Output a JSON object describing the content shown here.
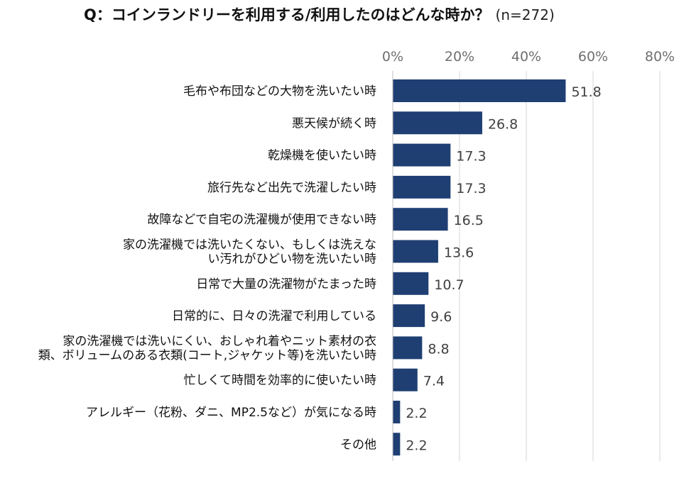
{
  "title": {
    "question": "Q：コインランドリーを利用する/利用したのはどんな時か？",
    "sample": "(n=272)"
  },
  "colors": {
    "bar": "#1f3f73",
    "grid": "#d4d4d4",
    "tick_text": "#6f6f6f",
    "value_text": "#404040"
  },
  "chart_data": {
    "type": "bar",
    "orientation": "horizontal",
    "xlim": [
      0,
      80
    ],
    "xticks": [
      0,
      20,
      40,
      60,
      80
    ],
    "xtick_labels": [
      "0%",
      "20%",
      "40%",
      "60%",
      "80%"
    ],
    "xaxis_position": "top",
    "grid": true,
    "categories": [
      [
        "毛布や布団などの大物を洗いたい時"
      ],
      [
        "悪天候が続く時"
      ],
      [
        "乾燥機を使いたい時"
      ],
      [
        "旅行先など出先で洗濯したい時"
      ],
      [
        "故障などで自宅の洗濯機が使用できない時"
      ],
      [
        "家の洗濯機では洗いたくない、もしくは洗えな",
        "い汚れがひどい物を洗いたい時"
      ],
      [
        "日常で大量の洗濯物がたまった時"
      ],
      [
        "日常的に、日々の洗濯で利用している"
      ],
      [
        "家の洗濯機では洗いにくい、おしゃれ着やニット素材の衣",
        "類、ボリュームのある衣類(コート,ジャケット等)を洗いたい時"
      ],
      [
        "忙しくて時間を効率的に使いたい時"
      ],
      [
        "アレルギー（花粉、ダニ、MP2.5など）が気になる時"
      ],
      [
        "その他"
      ]
    ],
    "values": [
      51.8,
      26.8,
      17.3,
      17.3,
      16.5,
      13.6,
      10.7,
      9.6,
      8.8,
      7.4,
      2.2,
      2.2
    ],
    "value_labels": [
      "51.8",
      "26.8",
      "17.3",
      "17.3",
      "16.5",
      "13.6",
      "10.7",
      "9.6",
      "8.8",
      "7.4",
      "2.2",
      "2.2"
    ]
  }
}
